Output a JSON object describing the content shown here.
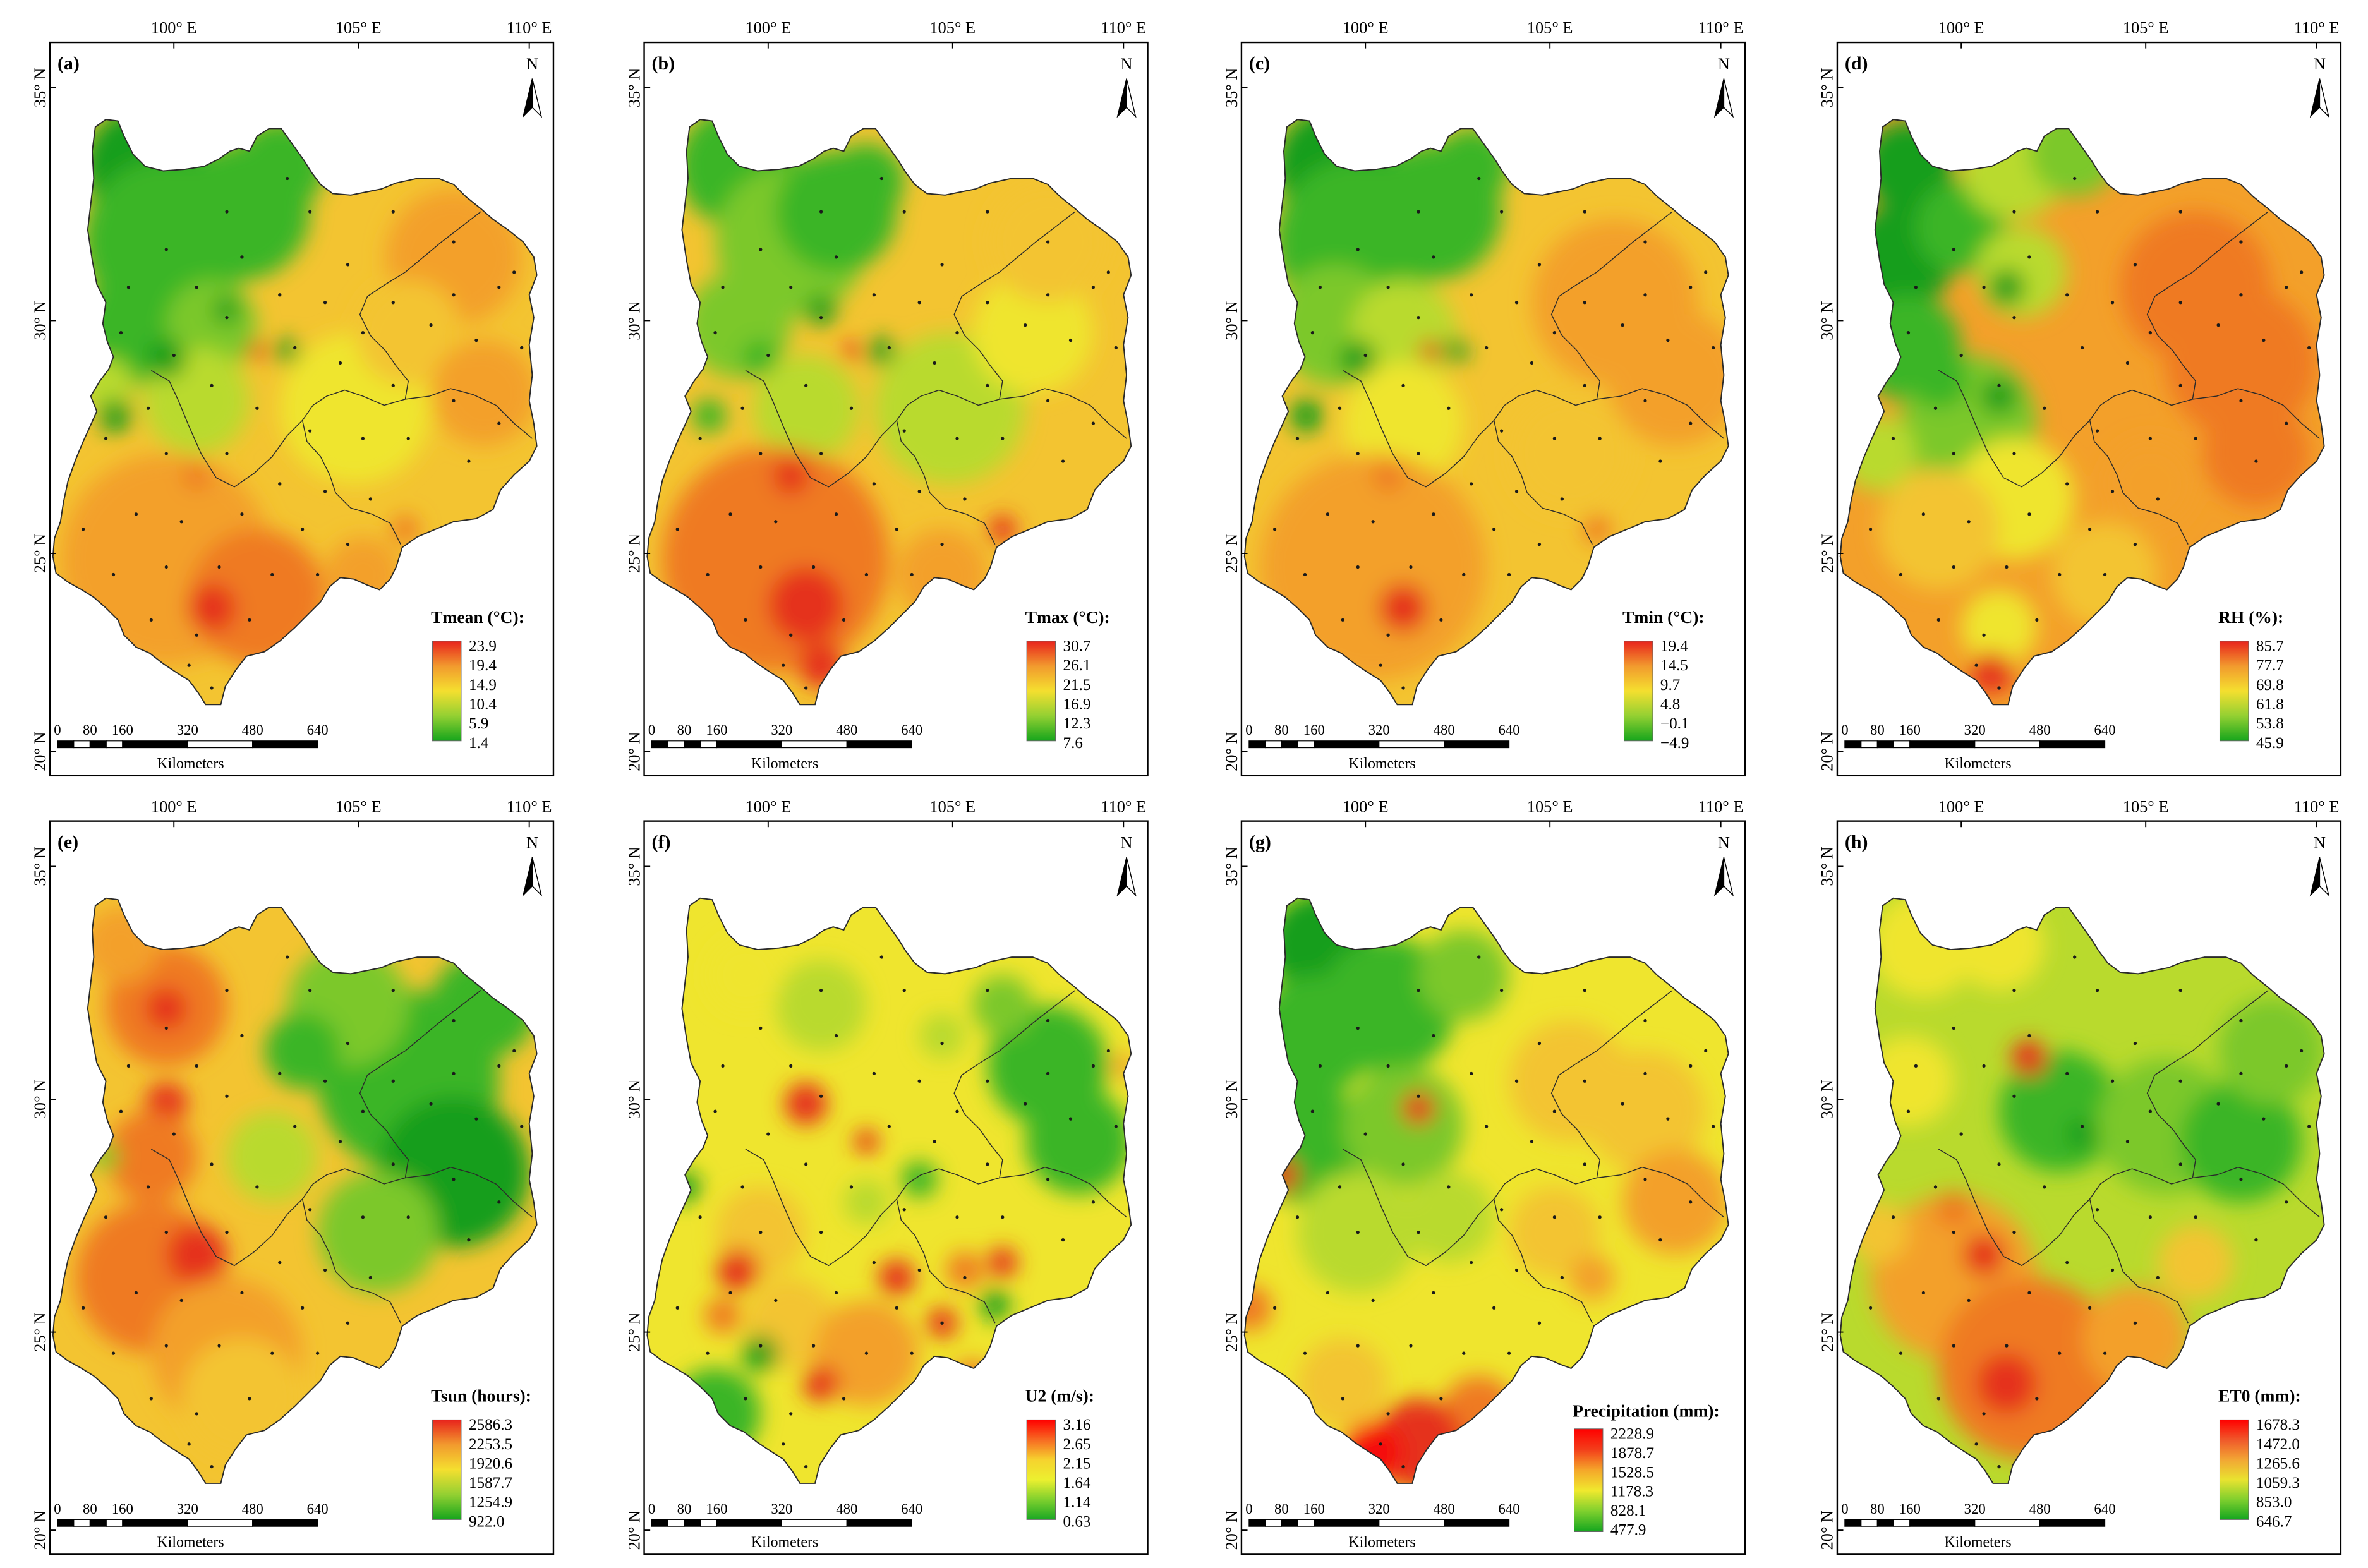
{
  "figure": {
    "longitude_ticks": [
      "100° E",
      "105° E",
      "110° E"
    ],
    "latitude_ticks": [
      "35° N",
      "30° N",
      "25° N",
      "20° N"
    ],
    "north_label": "N",
    "scale_bar": {
      "ticks": [
        "0",
        "80",
        "160",
        "320",
        "480",
        "640"
      ],
      "unit": "Kilometers"
    },
    "palette": {
      "dark_green": "#139e1c",
      "green": "#3bb526",
      "light_green": "#7cc82b",
      "yellow_green": "#b9da2d",
      "yellow": "#efe52e",
      "light_orange": "#f3c431",
      "orange": "#f3a02a",
      "dark_orange": "#ef7a22",
      "red": "#e5301c",
      "bright_red": "#f50b0b"
    },
    "panels": [
      {
        "label": "(a)",
        "legend": {
          "title": "Tmean (°C):",
          "values": [
            "23.9",
            "19.4",
            "14.9",
            "10.4",
            "5.9",
            "1.4"
          ],
          "ramp": [
            "#e8231c",
            "#f29a2e",
            "#f4df2f",
            "#93d032",
            "#15a51c"
          ]
        }
      },
      {
        "label": "(b)",
        "legend": {
          "title": "Tmax (°C):",
          "values": [
            "30.7",
            "26.1",
            "21.5",
            "16.9",
            "12.3",
            "7.6"
          ],
          "ramp": [
            "#e8231c",
            "#f29a2e",
            "#f4df2f",
            "#93d032",
            "#15a51c"
          ]
        }
      },
      {
        "label": "(c)",
        "legend": {
          "title": "Tmin (°C):",
          "values": [
            "19.4",
            "14.5",
            "9.7",
            "4.8",
            "−0.1",
            "−4.9"
          ],
          "ramp": [
            "#e8231c",
            "#f29a2e",
            "#f4df2f",
            "#93d032",
            "#15a51c"
          ]
        }
      },
      {
        "label": "(d)",
        "legend": {
          "title": "RH (%):",
          "values": [
            "85.7",
            "77.7",
            "69.8",
            "61.8",
            "53.8",
            "45.9"
          ],
          "ramp": [
            "#e8231c",
            "#f29a2e",
            "#f4df2f",
            "#93d032",
            "#15a51c"
          ]
        }
      },
      {
        "label": "(e)",
        "legend": {
          "title": "Tsun (hours):",
          "values": [
            "2586.3",
            "2253.5",
            "1920.6",
            "1587.7",
            "1254.9",
            "922.0"
          ],
          "ramp": [
            "#e8231c",
            "#f29a2e",
            "#f4df2f",
            "#93d032",
            "#15a51c"
          ]
        }
      },
      {
        "label": "(f)",
        "legend": {
          "title": "U2 (m/s):",
          "values": [
            "3.16",
            "2.65",
            "2.15",
            "1.64",
            "1.14",
            "0.63"
          ],
          "ramp": [
            "#ff0000",
            "#f76a22",
            "#f6d22e",
            "#ecf02f",
            "#7fd02e",
            "#1aa823"
          ]
        }
      },
      {
        "label": "(g)",
        "legend": {
          "title": "Precipitation (mm):",
          "values": [
            "2228.9",
            "1878.7",
            "1528.5",
            "1178.3",
            "828.1",
            "477.9"
          ],
          "ramp": [
            "#ff0000",
            "#f33d1a",
            "#f5a62a",
            "#f0e92e",
            "#7fd02e",
            "#14a61f"
          ]
        }
      },
      {
        "label": "(h)",
        "legend": {
          "title": "ET0 (mm):",
          "values": [
            "1678.3",
            "1472.0",
            "1265.6",
            "1059.3",
            "853.0",
            "646.7"
          ],
          "ramp": [
            "#ff0000",
            "#f0582a",
            "#f2a634",
            "#e9e330",
            "#7fcf2e",
            "#14a61f"
          ]
        }
      }
    ]
  }
}
